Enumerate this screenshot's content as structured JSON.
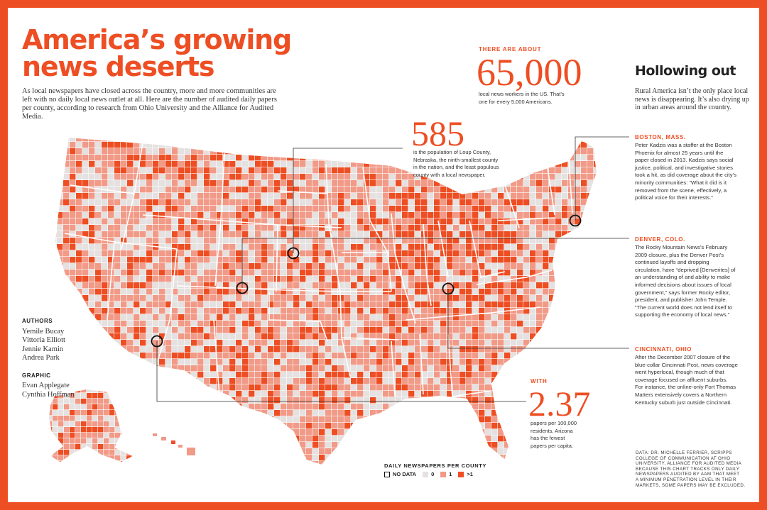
{
  "title_lines": [
    "America’s growing",
    "news deserts"
  ],
  "intro": "As local newspapers have closed across the country, more and more communities are left with no daily local news outlet at all. Here are the number of audited daily papers per county, according to research from Ohio University and the Alliance for Audited Media.",
  "authors": {
    "heading": "AUTHORS",
    "names": [
      "Yemile Bucay",
      "Vittoria Elliott",
      "Jennie Kamin",
      "Andrea Park"
    ]
  },
  "graphic": {
    "heading": "GRAPHIC",
    "names": [
      "Evan Applegate",
      "Cynthia Hoffman"
    ]
  },
  "stat_workers": {
    "kicker": "THERE ARE ABOUT",
    "number": "65,000",
    "text_lines": [
      "local news workers in the US. That’s",
      "one for every 5,000 Americans."
    ]
  },
  "stat_loup": {
    "number": "585",
    "text_lines": [
      "is the population of Loup County,",
      "Nebraska, the ninth-smallest county",
      "in the nation, and the least populous",
      "county with a local newspaper."
    ]
  },
  "stat_arizona": {
    "kicker": "WITH",
    "number": "2.37",
    "text_lines": [
      "papers per 100,000",
      "residents, Arizona",
      "has the fewest",
      "papers per capita."
    ]
  },
  "hollowing": {
    "heading": "Hollowing out",
    "text": "Rural America isn’t the only place local news is disappearing. It’s also drying up in urban areas around the country."
  },
  "cases": [
    {
      "heading": "BOSTON, MASS.",
      "lines": [
        "Peter Kadzis was a staffer at the Boston",
        "Phoenix for almost 25 years until the",
        "paper closed in 2013. Kadzis says social",
        "justice, political, and investigative stories",
        "took a hit, as did coverage about the city’s",
        "minority communities: “What it did is it",
        "removed from the scene, effectively, a",
        "political voice for their interests.”"
      ]
    },
    {
      "heading": "DENVER, COLO.",
      "lines": [
        "The Rocky Mountain News’s February",
        "2009 closure, plus the Denver Post’s",
        "continued layoffs and dropping",
        "circulation, have “deprived [Denverites] of",
        "an understanding of and ability to make",
        "informed decisions about issues of local",
        "government,” says former Rocky editor,",
        "president, and publisher John Temple.",
        "“The current world does not lend itself to",
        "supporting the economy of local news.”"
      ]
    },
    {
      "heading": "CINCINNATI, OHIO",
      "lines": [
        "After the December 2007 closure of the",
        "blue-collar Cincinnati Post, news coverage",
        "went hyperlocal, though much of that",
        "coverage focused on affluent suburbs.",
        "For instance, the online-only Fort Thomas",
        "Matters extensively covers a Northern",
        "Kentucky suburb just outside Cincinnati."
      ]
    }
  ],
  "legend": {
    "title": "DAILY NEWSPAPERS PER COUNTY",
    "items": [
      {
        "label": "NO DATA",
        "color": "#ffffff"
      },
      {
        "label": "0",
        "color": "#e5e1e0"
      },
      {
        "label": "1",
        "color": "#f19a87"
      },
      {
        "label": ">1",
        "color": "#ee4e23"
      }
    ]
  },
  "source_lines": [
    "DATA: DR. MICHELLE FERRIER, SCRIPPS",
    "COLLEGE OF COMMUNICATION AT OHIO",
    "UNIVERSITY, ALLIANCE FOR AUDITED MEDIA",
    "BECAUSE THIS CHART TRACKS ONLY DAILY",
    "NEWSPAPERS AUDITED BY AAM THAT MEET",
    "A MINIMUM PENETRATION LEVEL IN THEIR",
    "MARKETS, SOME PAPERS MAY BE EXCLUDED."
  ],
  "colors": {
    "accent": "#ee4e23",
    "one_paper": "#f19a87",
    "zero": "#e5e1e0"
  }
}
